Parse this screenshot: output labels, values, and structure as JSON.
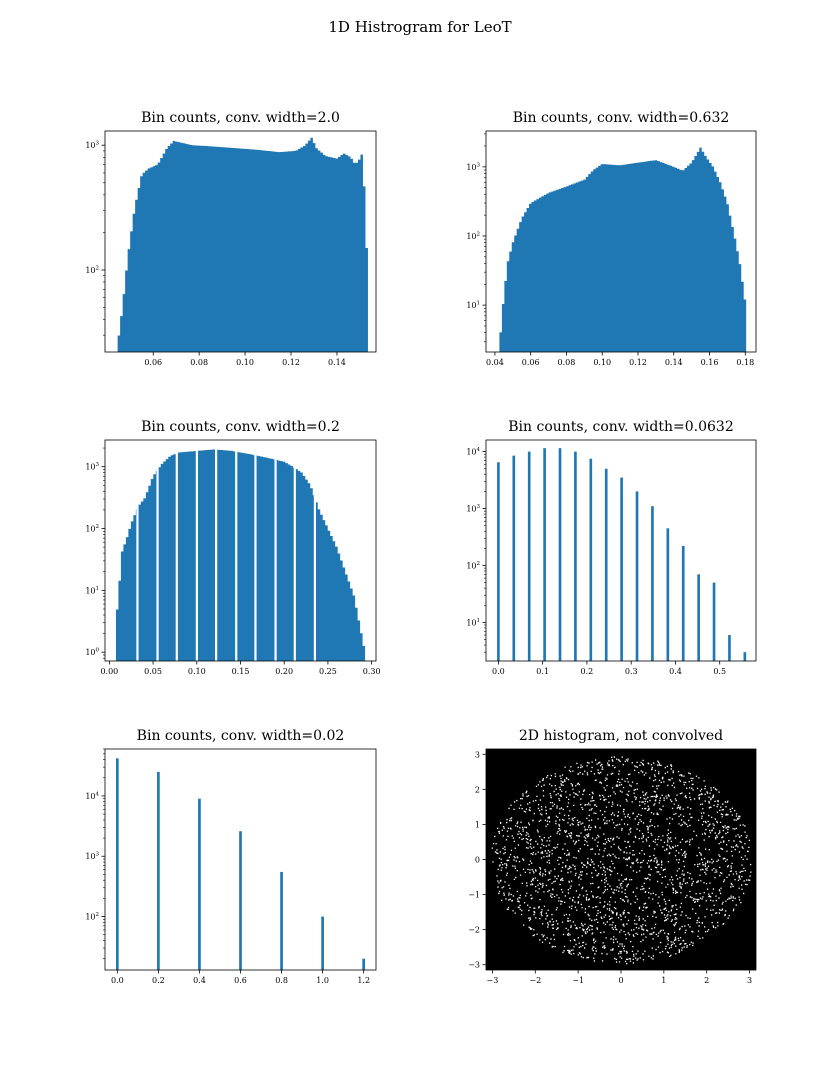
{
  "figure": {
    "title": "1D Histrogram for LeoT"
  },
  "chart_data": [
    {
      "type": "bar",
      "title": "Bin counts, conv. width=2.0",
      "yscale": "log",
      "xlim": [
        0.039,
        0.157
      ],
      "ylim": [
        22,
        1300
      ],
      "xticks": [
        0.06,
        0.08,
        0.1,
        0.12,
        0.14
      ],
      "xtick_labels": [
        "0.06",
        "0.08",
        "0.10",
        "0.12",
        "0.14"
      ],
      "yticks": [
        100,
        1000
      ],
      "ytick_labels": [
        "10^2",
        "10^3"
      ],
      "bin_range": [
        0.0445,
        0.1535
      ],
      "bins": 100,
      "profile": [
        [
          0.0445,
          25
        ],
        [
          0.0465,
          48
        ],
        [
          0.049,
          130
        ],
        [
          0.052,
          320
        ],
        [
          0.055,
          580
        ],
        [
          0.058,
          650
        ],
        [
          0.062,
          700
        ],
        [
          0.066,
          950
        ],
        [
          0.069,
          1080
        ],
        [
          0.072,
          1050
        ],
        [
          0.077,
          1000
        ],
        [
          0.085,
          980
        ],
        [
          0.095,
          950
        ],
        [
          0.105,
          920
        ],
        [
          0.115,
          880
        ],
        [
          0.122,
          900
        ],
        [
          0.126,
          990
        ],
        [
          0.129,
          1150
        ],
        [
          0.131,
          950
        ],
        [
          0.135,
          820
        ],
        [
          0.14,
          780
        ],
        [
          0.143,
          860
        ],
        [
          0.146,
          800
        ],
        [
          0.148,
          700
        ],
        [
          0.15,
          780
        ],
        [
          0.1515,
          900
        ],
        [
          0.1525,
          150
        ],
        [
          0.1535,
          150
        ]
      ],
      "color": "#1f77b4"
    },
    {
      "type": "bar",
      "title": "Bin counts, conv. width=0.632",
      "yscale": "log",
      "xlim": [
        0.035,
        0.186
      ],
      "ylim": [
        2.1,
        3300
      ],
      "xticks": [
        0.04,
        0.06,
        0.08,
        0.1,
        0.12,
        0.14,
        0.16,
        0.18
      ],
      "xtick_labels": [
        "0.04",
        "0.06",
        "0.08",
        "0.10",
        "0.12",
        "0.14",
        "0.16",
        "0.18"
      ],
      "yticks": [
        10,
        100,
        1000
      ],
      "ytick_labels": [
        "10^1",
        "10^2",
        "10^3"
      ],
      "bin_range": [
        0.0425,
        0.1805
      ],
      "bins": 100,
      "profile": [
        [
          0.0425,
          2.5
        ],
        [
          0.0445,
          10
        ],
        [
          0.047,
          40
        ],
        [
          0.05,
          80
        ],
        [
          0.055,
          180
        ],
        [
          0.06,
          300
        ],
        [
          0.07,
          420
        ],
        [
          0.08,
          520
        ],
        [
          0.09,
          650
        ],
        [
          0.095,
          900
        ],
        [
          0.1,
          1100
        ],
        [
          0.11,
          1050
        ],
        [
          0.12,
          1150
        ],
        [
          0.13,
          1250
        ],
        [
          0.14,
          1000
        ],
        [
          0.145,
          880
        ],
        [
          0.15,
          1150
        ],
        [
          0.155,
          1900
        ],
        [
          0.158,
          1400
        ],
        [
          0.162,
          1000
        ],
        [
          0.166,
          600
        ],
        [
          0.17,
          300
        ],
        [
          0.174,
          100
        ],
        [
          0.177,
          40
        ],
        [
          0.1805,
          9
        ]
      ],
      "color": "#1f77b4"
    },
    {
      "type": "bar",
      "title": "Bin counts, conv. width=0.2",
      "yscale": "log",
      "xlim": [
        -0.005,
        0.305
      ],
      "ylim": [
        0.72,
        2700
      ],
      "xticks": [
        0.0,
        0.05,
        0.1,
        0.15,
        0.2,
        0.25,
        0.3
      ],
      "xtick_labels": [
        "0.00",
        "0.05",
        "0.10",
        "0.15",
        "0.20",
        "0.25",
        "0.30"
      ],
      "yticks": [
        1,
        10,
        100,
        1000
      ],
      "ytick_labels": [
        "10^0",
        "10^1",
        "10^2",
        "10^3"
      ],
      "bin_range": [
        0.0075,
        0.2925
      ],
      "bins": 100,
      "gaps": [
        0.032,
        0.055,
        0.077,
        0.1,
        0.122,
        0.145,
        0.167,
        0.19,
        0.212,
        0.235
      ],
      "profile": [
        [
          0.0075,
          3
        ],
        [
          0.011,
          10
        ],
        [
          0.014,
          40
        ],
        [
          0.02,
          70
        ],
        [
          0.025,
          120
        ],
        [
          0.03,
          180
        ],
        [
          0.035,
          250
        ],
        [
          0.04,
          300
        ],
        [
          0.045,
          450
        ],
        [
          0.05,
          700
        ],
        [
          0.06,
          1100
        ],
        [
          0.07,
          1500
        ],
        [
          0.08,
          1700
        ],
        [
          0.1,
          1800
        ],
        [
          0.12,
          1900
        ],
        [
          0.14,
          1800
        ],
        [
          0.16,
          1600
        ],
        [
          0.18,
          1400
        ],
        [
          0.2,
          1200
        ],
        [
          0.21,
          1000
        ],
        [
          0.22,
          800
        ],
        [
          0.23,
          500
        ],
        [
          0.24,
          200
        ],
        [
          0.25,
          100
        ],
        [
          0.26,
          50
        ],
        [
          0.27,
          20
        ],
        [
          0.28,
          8
        ],
        [
          0.29,
          1.5
        ],
        [
          0.2925,
          1
        ]
      ],
      "color": "#1f77b4"
    },
    {
      "type": "bar",
      "title": "Bin counts, conv. width=0.0632",
      "yscale": "log",
      "xlim": [
        -0.028,
        0.582
      ],
      "ylim": [
        2.1,
        16000
      ],
      "xticks": [
        0.0,
        0.1,
        0.2,
        0.3,
        0.4,
        0.5
      ],
      "xtick_labels": [
        "0.0",
        "0.1",
        "0.2",
        "0.3",
        "0.4",
        "0.5"
      ],
      "yticks": [
        10,
        100,
        1000,
        10000
      ],
      "ytick_labels": [
        "10^1",
        "10^2",
        "10^3",
        "10^4"
      ],
      "bar_width": 0.006,
      "x": [
        0.0,
        0.0348,
        0.0696,
        0.1044,
        0.1392,
        0.174,
        0.2088,
        0.2436,
        0.2784,
        0.3132,
        0.348,
        0.3828,
        0.4176,
        0.4524,
        0.4872,
        0.522,
        0.5568
      ],
      "values": [
        6500,
        8500,
        10000,
        11500,
        11500,
        10000,
        7500,
        5000,
        3500,
        2000,
        1100,
        450,
        220,
        70,
        50,
        6,
        3
      ],
      "color": "#1f77b4"
    },
    {
      "type": "bar",
      "title": "Bin counts, conv. width=0.02",
      "yscale": "log",
      "xlim": [
        -0.06,
        1.26
      ],
      "ylim": [
        13,
        60000
      ],
      "xticks": [
        0.0,
        0.2,
        0.4,
        0.6,
        0.8,
        1.0,
        1.2
      ],
      "xtick_labels": [
        "0.0",
        "0.2",
        "0.4",
        "0.6",
        "0.8",
        "1.0",
        "1.2"
      ],
      "yticks": [
        100,
        1000,
        10000
      ],
      "ytick_labels": [
        "10^2",
        "10^3",
        "10^4"
      ],
      "bar_width": 0.013,
      "x": [
        0.0,
        0.2,
        0.4,
        0.6,
        0.8,
        1.0,
        1.2
      ],
      "values": [
        42000,
        25000,
        9000,
        2600,
        550,
        100,
        20
      ],
      "color": "#1f77b4"
    },
    {
      "type": "heatmap",
      "title": "2D histogram, not convolved",
      "xlim": [
        -3.15,
        3.15
      ],
      "ylim": [
        -3.15,
        3.15
      ],
      "xticks": [
        -3,
        -2,
        -1,
        0,
        1,
        2,
        3
      ],
      "xtick_labels": [
        "−3",
        "−2",
        "−1",
        "0",
        "1",
        "2",
        "3"
      ],
      "yticks": [
        -3,
        -2,
        -1,
        0,
        1,
        2,
        3
      ],
      "ytick_labels": [
        "−3",
        "−2",
        "−1",
        "0",
        "1",
        "2",
        "3"
      ],
      "background": "#000000",
      "point_color": "#ffffff",
      "ellipse_radii": [
        3.05,
        2.95
      ],
      "stripe_angle_deg": 58,
      "stripe_spacing": 0.82
    }
  ]
}
